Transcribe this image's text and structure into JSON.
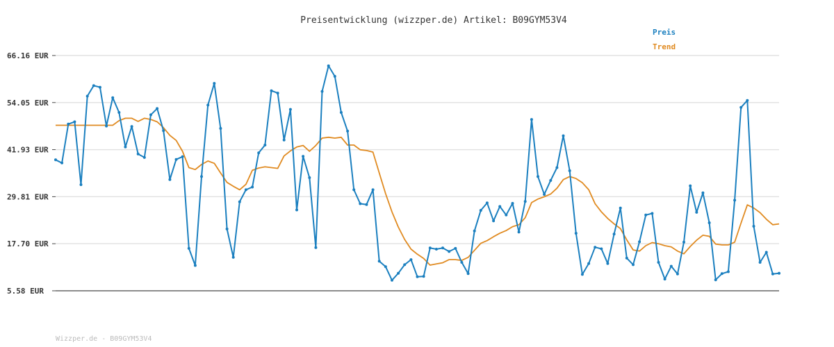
{
  "chart_data": {
    "type": "line",
    "title": "Preisentwicklung (wizzper.de) Artikel: B09GYM53V4",
    "footer": "Wizzper.de - B09GYM53V4",
    "y_ticks": [
      {
        "value": 5.58,
        "label": "5.58 EUR"
      },
      {
        "value": 17.7,
        "label": "17.70 EUR"
      },
      {
        "value": 29.81,
        "label": "29.81 EUR"
      },
      {
        "value": 41.93,
        "label": "41.93 EUR"
      },
      {
        "value": 54.05,
        "label": "54.05 EUR"
      },
      {
        "value": 66.16,
        "label": "66.16 EUR"
      }
    ],
    "ylim": [
      5.58,
      66.16
    ],
    "grid": true,
    "legend_position": "top-right",
    "series": [
      {
        "name": "Preis",
        "color": "#1a7fbf",
        "markers": true,
        "values": [
          39.3,
          38.5,
          48.5,
          49.1,
          32.9,
          55.7,
          58.4,
          58.0,
          48.0,
          55.3,
          51.5,
          42.6,
          47.9,
          40.8,
          39.9,
          50.9,
          52.5,
          46.8,
          34.2,
          39.4,
          40.1,
          16.5,
          12.1,
          35.0,
          53.4,
          59.0,
          47.4,
          21.5,
          14.2,
          28.5,
          31.6,
          32.3,
          41.1,
          43.1,
          57.1,
          56.5,
          44.4,
          52.3,
          26.4,
          40.2,
          34.7,
          16.7,
          56.9,
          63.5,
          60.8,
          51.5,
          46.7,
          31.6,
          28.0,
          27.8,
          31.6,
          13.2,
          11.8,
          8.3,
          10.1,
          12.3,
          13.6,
          9.2,
          9.3,
          16.6,
          16.3,
          16.6,
          15.7,
          16.5,
          12.9,
          10.0,
          21.0,
          26.3,
          28.2,
          23.6,
          27.3,
          25.1,
          28.1,
          20.7,
          28.6,
          49.7,
          35.0,
          30.4,
          34.0,
          37.3,
          45.5,
          36.5,
          20.4,
          9.8,
          12.6,
          16.8,
          16.4,
          12.6,
          20.2,
          26.9,
          14.0,
          12.3,
          18.2,
          25.1,
          25.5,
          12.9,
          8.6,
          11.9,
          9.9,
          18.1,
          32.6,
          25.8,
          30.8,
          23.1,
          8.4,
          10.0,
          10.5,
          28.9,
          52.8,
          54.6,
          22.2,
          12.9,
          15.5,
          9.9,
          10.1
        ],
        "value_labels": []
      },
      {
        "name": "Trend",
        "color": "#e08a20",
        "markers": false,
        "values": [
          48.2,
          48.2,
          48.2,
          48.2,
          48.2,
          48.2,
          48.2,
          48.2,
          48.2,
          48.2,
          49.4,
          50.0,
          50.0,
          49.2,
          50.0,
          49.7,
          49.1,
          47.6,
          45.6,
          44.3,
          41.5,
          37.3,
          36.8,
          38.1,
          39.0,
          38.4,
          35.9,
          33.5,
          32.5,
          31.6,
          33.0,
          36.6,
          37.2,
          37.5,
          37.3,
          37.1,
          40.3,
          41.6,
          42.6,
          43.0,
          41.5,
          43.0,
          44.9,
          45.1,
          44.9,
          45.1,
          43.1,
          43.1,
          41.9,
          41.7,
          41.3,
          35.9,
          30.6,
          25.9,
          22.0,
          18.8,
          16.3,
          15.0,
          13.9,
          12.2,
          12.5,
          12.8,
          13.6,
          13.6,
          13.4,
          14.2,
          16.0,
          17.8,
          18.5,
          19.5,
          20.4,
          21.1,
          22.1,
          22.6,
          24.4,
          28.3,
          29.2,
          29.8,
          30.5,
          32.0,
          34.2,
          35.0,
          34.5,
          33.4,
          31.6,
          28.0,
          25.9,
          24.2,
          22.8,
          21.6,
          18.7,
          16.1,
          15.8,
          17.2,
          18.0,
          17.7,
          17.2,
          16.9,
          15.8,
          15.1,
          17.0,
          18.6,
          19.9,
          19.6,
          17.6,
          17.4,
          17.4,
          18.1,
          23.0,
          27.7,
          26.9,
          25.7,
          24.0,
          22.6,
          22.8
        ]
      }
    ]
  }
}
